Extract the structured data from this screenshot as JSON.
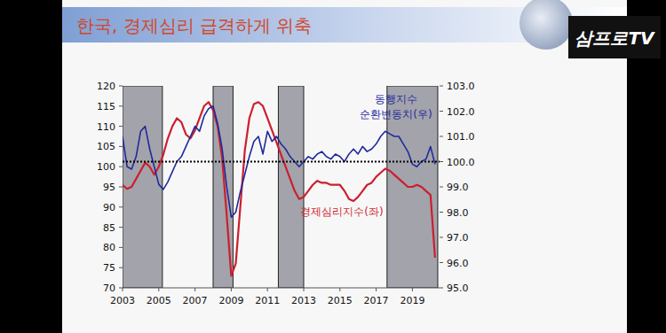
{
  "chart_data": {
    "type": "line",
    "title": "한국, 경제심리 급격하게 위축",
    "watermark": "삼프로TV",
    "x": [
      2003.0,
      2003.25,
      2003.5,
      2003.75,
      2004.0,
      2004.25,
      2004.5,
      2004.75,
      2005.0,
      2005.25,
      2005.5,
      2005.75,
      2006.0,
      2006.25,
      2006.5,
      2006.75,
      2007.0,
      2007.25,
      2007.5,
      2007.75,
      2008.0,
      2008.25,
      2008.5,
      2008.75,
      2009.0,
      2009.25,
      2009.5,
      2009.75,
      2010.0,
      2010.25,
      2010.5,
      2010.75,
      2011.0,
      2011.25,
      2011.5,
      2011.75,
      2012.0,
      2012.25,
      2012.5,
      2012.75,
      2013.0,
      2013.25,
      2013.5,
      2013.75,
      2014.0,
      2014.25,
      2014.5,
      2014.75,
      2015.0,
      2015.25,
      2015.5,
      2015.75,
      2016.0,
      2016.25,
      2016.5,
      2016.75,
      2017.0,
      2017.25,
      2017.5,
      2017.75,
      2018.0,
      2018.25,
      2018.5,
      2018.75,
      2019.0,
      2019.25,
      2019.5,
      2019.75,
      2020.0,
      2020.25
    ],
    "xlim": [
      2003,
      2020.5
    ],
    "xticks": [
      2003,
      2005,
      2007,
      2009,
      2011,
      2013,
      2015,
      2017,
      2019
    ],
    "ylim": [
      70,
      120
    ],
    "yticks": [
      70,
      75,
      80,
      85,
      90,
      95,
      100,
      105,
      110,
      115,
      120
    ],
    "y2lim": [
      95,
      103
    ],
    "y2ticks": [
      {
        "value": 95,
        "label": "95.0"
      },
      {
        "value": 96,
        "label": "96.0"
      },
      {
        "value": 97,
        "label": "97.0"
      },
      {
        "value": 98,
        "label": "98.0"
      },
      {
        "value": 99,
        "label": "99.0"
      },
      {
        "value": 100,
        "label": "100.0"
      },
      {
        "value": 101,
        "label": "101.0"
      },
      {
        "value": 102,
        "label": "102.0"
      },
      {
        "value": 103,
        "label": "103.0"
      }
    ],
    "grid": false,
    "series": [
      {
        "name": "경제심리지수(좌)",
        "color": "#cc1f2e",
        "values": [
          95.5,
          94.5,
          95,
          97,
          99,
          101,
          100,
          98,
          100,
          103,
          107,
          110,
          112,
          111,
          108,
          107,
          109,
          112,
          115,
          116,
          114,
          110,
          102,
          88,
          73,
          76,
          90,
          104,
          112,
          115.5,
          116,
          115,
          112,
          109,
          106,
          103,
          100,
          97,
          94,
          92,
          92.5,
          94,
          95.5,
          96.5,
          96,
          96,
          95.5,
          95.5,
          95.5,
          94,
          92,
          91.5,
          92.5,
          94,
          95.5,
          96,
          97.5,
          98.5,
          99.5,
          99,
          98,
          97,
          96,
          95,
          95,
          95.5,
          95,
          94,
          93,
          77.5
        ]
      },
      {
        "name": "동행지수 순환변동치(우)",
        "color": "#1f2a9c",
        "axis": "y2",
        "values": [
          101.0,
          99.8,
          99.7,
          100.2,
          101.2,
          101.4,
          100.5,
          99.8,
          99.1,
          98.9,
          99.2,
          99.6,
          100.0,
          100.2,
          100.6,
          101.0,
          101.4,
          101.2,
          101.8,
          102.1,
          102.2,
          101.5,
          100.5,
          99.0,
          97.8,
          98.0,
          98.8,
          99.5,
          100.2,
          100.8,
          101.0,
          100.3,
          101.2,
          100.8,
          101.0,
          100.7,
          100.5,
          100.2,
          100.0,
          99.8,
          100.0,
          100.2,
          100.1,
          100.3,
          100.4,
          100.2,
          100.1,
          100.3,
          100.2,
          100.0,
          100.3,
          100.5,
          100.3,
          100.6,
          100.4,
          100.5,
          100.7,
          101.0,
          101.2,
          101.1,
          101.0,
          101.0,
          100.7,
          100.4,
          99.9,
          99.8,
          100.0,
          100.1,
          100.6,
          99.9
        ]
      }
    ],
    "shaded_periods": [
      {
        "start": 2003.0,
        "end": 2005.2
      },
      {
        "start": 2008.0,
        "end": 2009.1
      },
      {
        "start": 2011.6,
        "end": 2013.0
      },
      {
        "start": 2017.6,
        "end": 2020.4
      }
    ],
    "reference_lines": [
      {
        "value": 100,
        "axis": "y2",
        "line_style": "dotted"
      }
    ]
  }
}
